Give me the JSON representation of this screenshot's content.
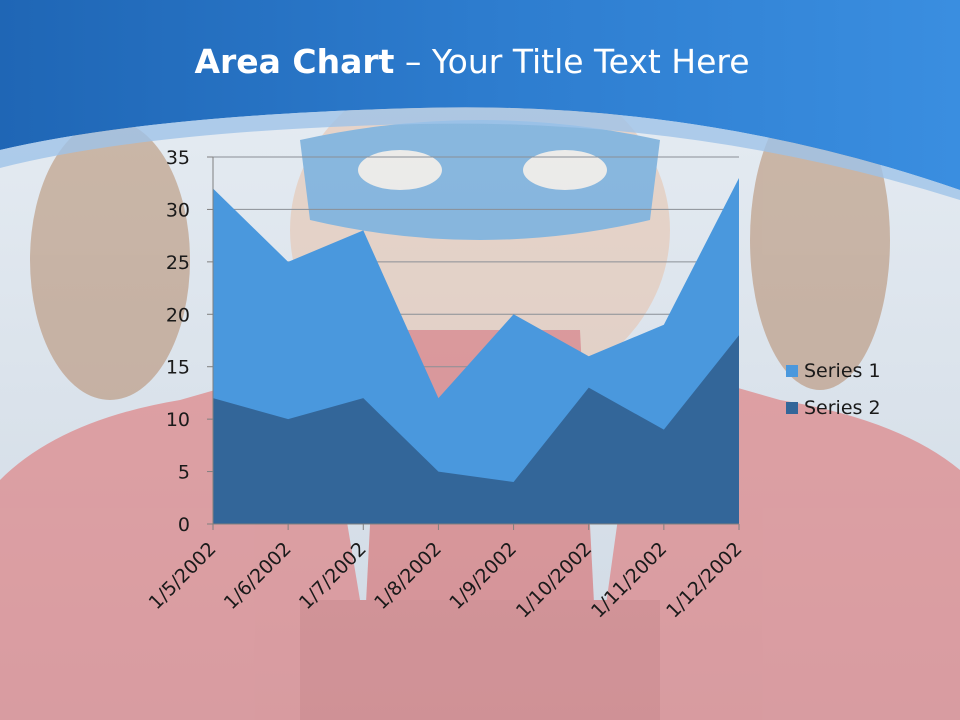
{
  "slide": {
    "title_bold": "Area Chart",
    "title_rest": " – Your Title Text Here"
  },
  "colors": {
    "header_blue": "#2f7fcf",
    "header_dark": "#1f63b0",
    "series1": "#4a98dd",
    "series2": "#336699",
    "background_photo": "superhero-child-photo"
  },
  "chart_data": {
    "type": "area",
    "stacked": false,
    "categories": [
      "1/5/2002",
      "1/6/2002",
      "1/7/2002",
      "1/8/2002",
      "1/9/2002",
      "1/10/2002",
      "1/11/2002",
      "1/12/2002"
    ],
    "series": [
      {
        "name": "Series 1",
        "values": [
          32,
          25,
          28,
          12,
          20,
          16,
          19,
          33
        ],
        "color": "#4a98dd"
      },
      {
        "name": "Series 2",
        "values": [
          12,
          10,
          12,
          5,
          4,
          13,
          9,
          18
        ],
        "color": "#336699"
      }
    ],
    "ylim": [
      0,
      35
    ],
    "yticks": [
      0,
      5,
      10,
      15,
      20,
      25,
      30,
      35
    ],
    "grid": true,
    "legend": "right"
  }
}
